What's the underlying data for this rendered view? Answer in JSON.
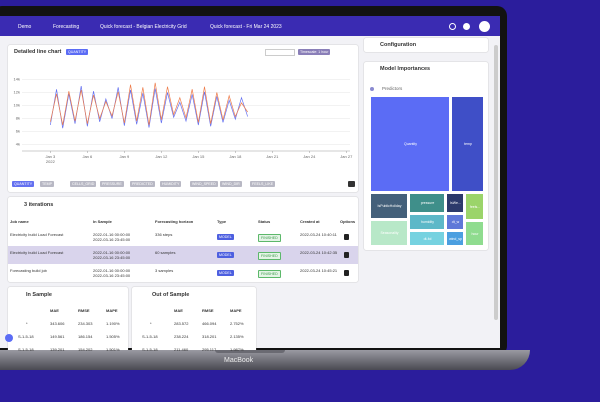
{
  "nav": {
    "breadcrumbs": [
      "Demo",
      "Forecasting",
      "Quick forecast - Belgian Electricity Grid",
      "Quick forecast - Fri Mar 24 2023"
    ]
  },
  "chart_card": {
    "title": "Detailed line chart",
    "timescale": "Timescale: 1 hour",
    "filters": [
      "TEMP",
      "CELLS_GRID",
      "PRESSURE",
      "HUMIDITY",
      "WIND_SPEED",
      "WIND_DIR",
      "FEELS_LIKE"
    ]
  },
  "chart_data": {
    "type": "line",
    "x": [
      3,
      3.5,
      4,
      4.5,
      5,
      5.5,
      6,
      6.5,
      7,
      7.5,
      8,
      8.5,
      9,
      9.5,
      10,
      10.5,
      11,
      11.5,
      12,
      12.5,
      13,
      13.5,
      14,
      14.5,
      15,
      15.5,
      16,
      16.5,
      17,
      17.5,
      18,
      18.5,
      19
    ],
    "series": [
      {
        "name": "QUANTITY",
        "color": "#6470f0",
        "values": [
          7000,
          12500,
          6500,
          11800,
          7200,
          13000,
          6800,
          12200,
          7500,
          11000,
          8000,
          12800,
          6900,
          12400,
          7100,
          11900,
          6600,
          12600,
          7300,
          12000,
          8200,
          10500,
          7600,
          11700,
          7000,
          12100,
          6800,
          11400,
          7400,
          10800,
          7900,
          11200,
          8300
        ]
      },
      {
        "name": "PREDICTED",
        "color": "#ee7d4c",
        "values": [
          7500,
          11800,
          7000,
          12200,
          7600,
          12400,
          7200,
          11600,
          8000,
          10600,
          8400,
          12100,
          7300,
          13200,
          7600,
          12800,
          7000,
          13500,
          7800,
          12900,
          8600,
          11200,
          8100,
          12500,
          7400,
          12900,
          7200,
          12000,
          7800,
          11500,
          8300,
          10400,
          9000
        ]
      }
    ],
    "xlim": [
      0.7,
      27.3
    ],
    "ylim": [
      3000,
      15000
    ],
    "xticks": [
      {
        "value": 3,
        "label": "Jan 3"
      },
      {
        "value": 6,
        "label": "Jan 6"
      },
      {
        "value": 9,
        "label": "Jan 9"
      },
      {
        "value": 12,
        "label": "Jan 12"
      },
      {
        "value": 15,
        "label": "Jan 15"
      },
      {
        "value": 18,
        "label": "Jan 18"
      },
      {
        "value": 21,
        "label": "Jan 21"
      },
      {
        "value": 24,
        "label": "Jan 24"
      },
      {
        "value": 27,
        "label": "Jan 27"
      }
    ],
    "x_year_label": "2022",
    "yticks": [
      {
        "value": 4000,
        "label": "4k"
      },
      {
        "value": 6000,
        "label": "6k"
      },
      {
        "value": 8000,
        "label": "8k"
      },
      {
        "value": 10000,
        "label": "10k"
      },
      {
        "value": 12000,
        "label": "12k"
      },
      {
        "value": 14000,
        "label": "14k"
      }
    ],
    "grid": true
  },
  "iterations": {
    "title": "3 iterations",
    "columns": [
      "Job name",
      "In Sample",
      "Forecasting horizon",
      "Type",
      "Status",
      "Created at",
      "Options"
    ],
    "rows": [
      [
        "Electricity build Load Forecast",
        "2022-01-16 00:00:00 2022-03-16 23:45:00",
        "336 steps",
        "MODEL",
        "FINISHED",
        "2022-03-24 10:40:11"
      ],
      [
        "Electricity build Load Forecast",
        "2022-01-16 00:00:00 2022-03-16 23:45:00",
        "60 samples",
        "MODEL",
        "FINISHED",
        "2022-03-24 10:42:35"
      ],
      [
        "Forecasting build job",
        "2022-01-16 00:00:00 2022-03-16 23:45:00",
        "3 samples",
        "MODEL",
        "FINISHED",
        "2022-03-24 10:45:21"
      ]
    ]
  },
  "in_sample": {
    "title": "In Sample",
    "columns": [
      "MAE",
      "RMSE",
      "MAPE"
    ],
    "rows": [
      [
        "*",
        "343.606",
        "234.303",
        "1.190%"
      ],
      [
        "S-1-5-18",
        "149.561",
        "186.154",
        "1.505%"
      ],
      [
        "S-1-5-18",
        "139.201",
        "154.202",
        "1.501%"
      ]
    ]
  },
  "out_sample": {
    "title": "Out of Sample",
    "columns": [
      "MAE",
      "RMSE",
      "MAPE"
    ],
    "rows": [
      [
        "*",
        "283.572",
        "466.094",
        "2.752%"
      ],
      [
        "S-1-5-18",
        "238.224",
        "318.201",
        "2.135%"
      ],
      [
        "S-1-5-18",
        "211.460",
        "295.117",
        "1.987%"
      ]
    ]
  },
  "configuration": {
    "title": "Configuration"
  },
  "importances": {
    "title": "Model Importances",
    "legend": "Predictors",
    "nodes": [
      "Quantity",
      "temp",
      "IsPublicHoliday",
      "pressure",
      "humidity",
      "Seasonality",
      "IsWe...",
      "dt_w",
      "feels...",
      "dt-fol",
      "wind_sp",
      "hour"
    ]
  },
  "device_label": "MacBook"
}
